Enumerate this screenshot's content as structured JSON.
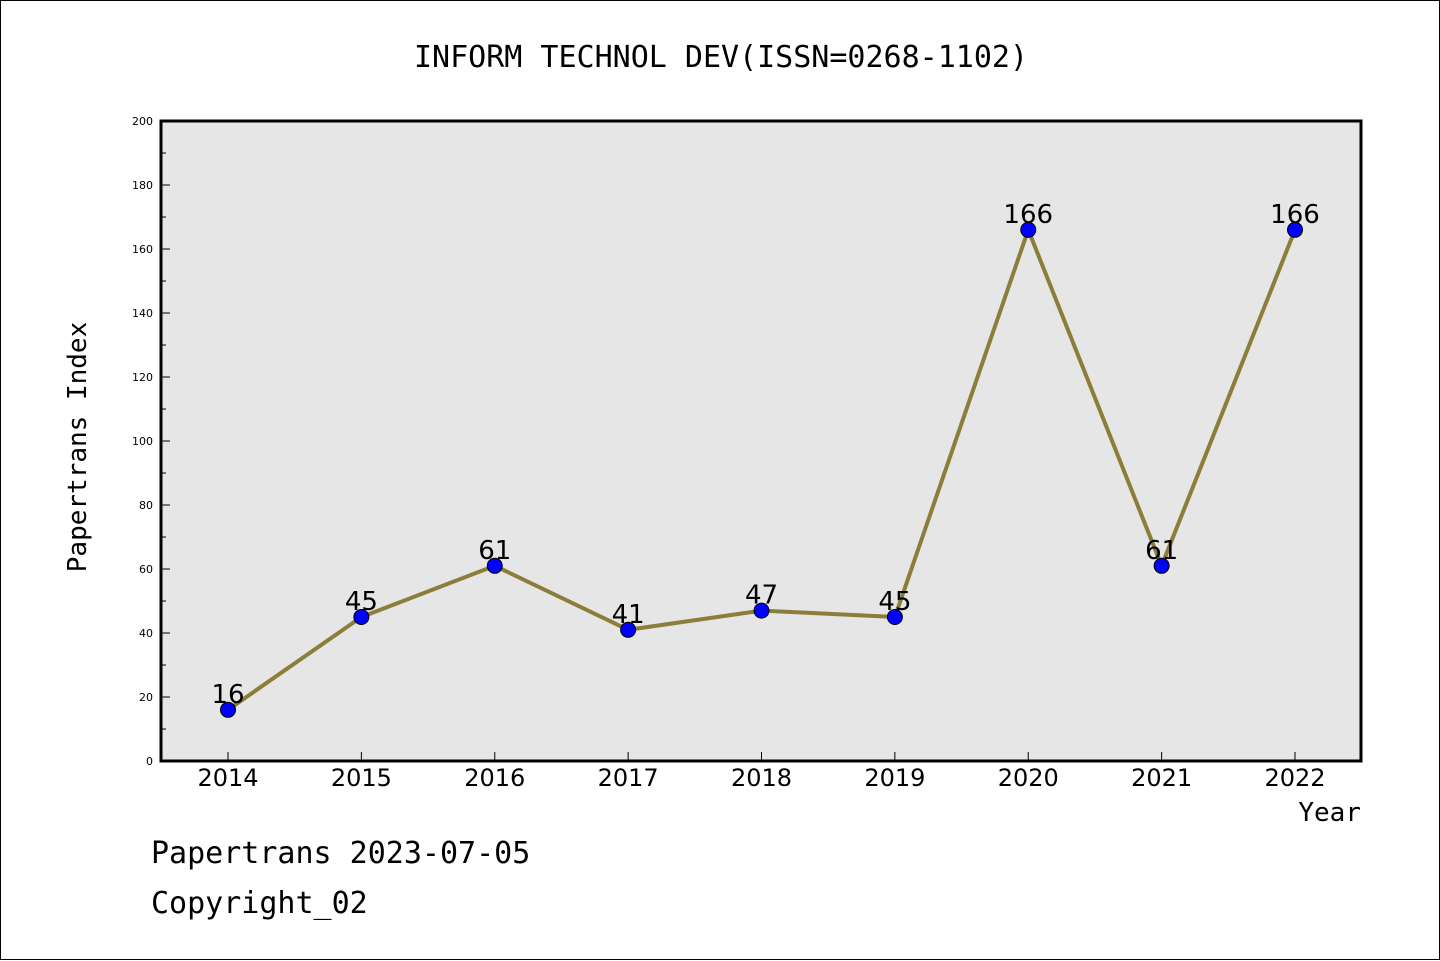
{
  "chart_data": {
    "type": "line",
    "title": "INFORM TECHNOL DEV(ISSN=0268-1102)",
    "xlabel": "Year",
    "ylabel": "Papertrans Index",
    "x": [
      "2014",
      "2015",
      "2016",
      "2017",
      "2018",
      "2019",
      "2020",
      "2021",
      "2022"
    ],
    "series": [
      {
        "values": [
          16,
          45,
          61,
          41,
          47,
          45,
          166,
          61,
          166
        ]
      }
    ],
    "data_labels": [
      "16",
      "45",
      "61",
      "41",
      "47",
      "45",
      "166",
      "61",
      "166"
    ],
    "ylim": [
      0,
      200
    ],
    "yticks": [
      "0",
      "20",
      "40",
      "60",
      "80",
      "100",
      "120",
      "140",
      "160",
      "180",
      "200"
    ],
    "grid": false,
    "line_color": "#8b7d3a",
    "marker_color": "#0000ff",
    "plot_background": "#e6e6e6"
  },
  "footer": {
    "line1": "Papertrans 2023-07-05",
    "line2": "Copyright_02"
  }
}
